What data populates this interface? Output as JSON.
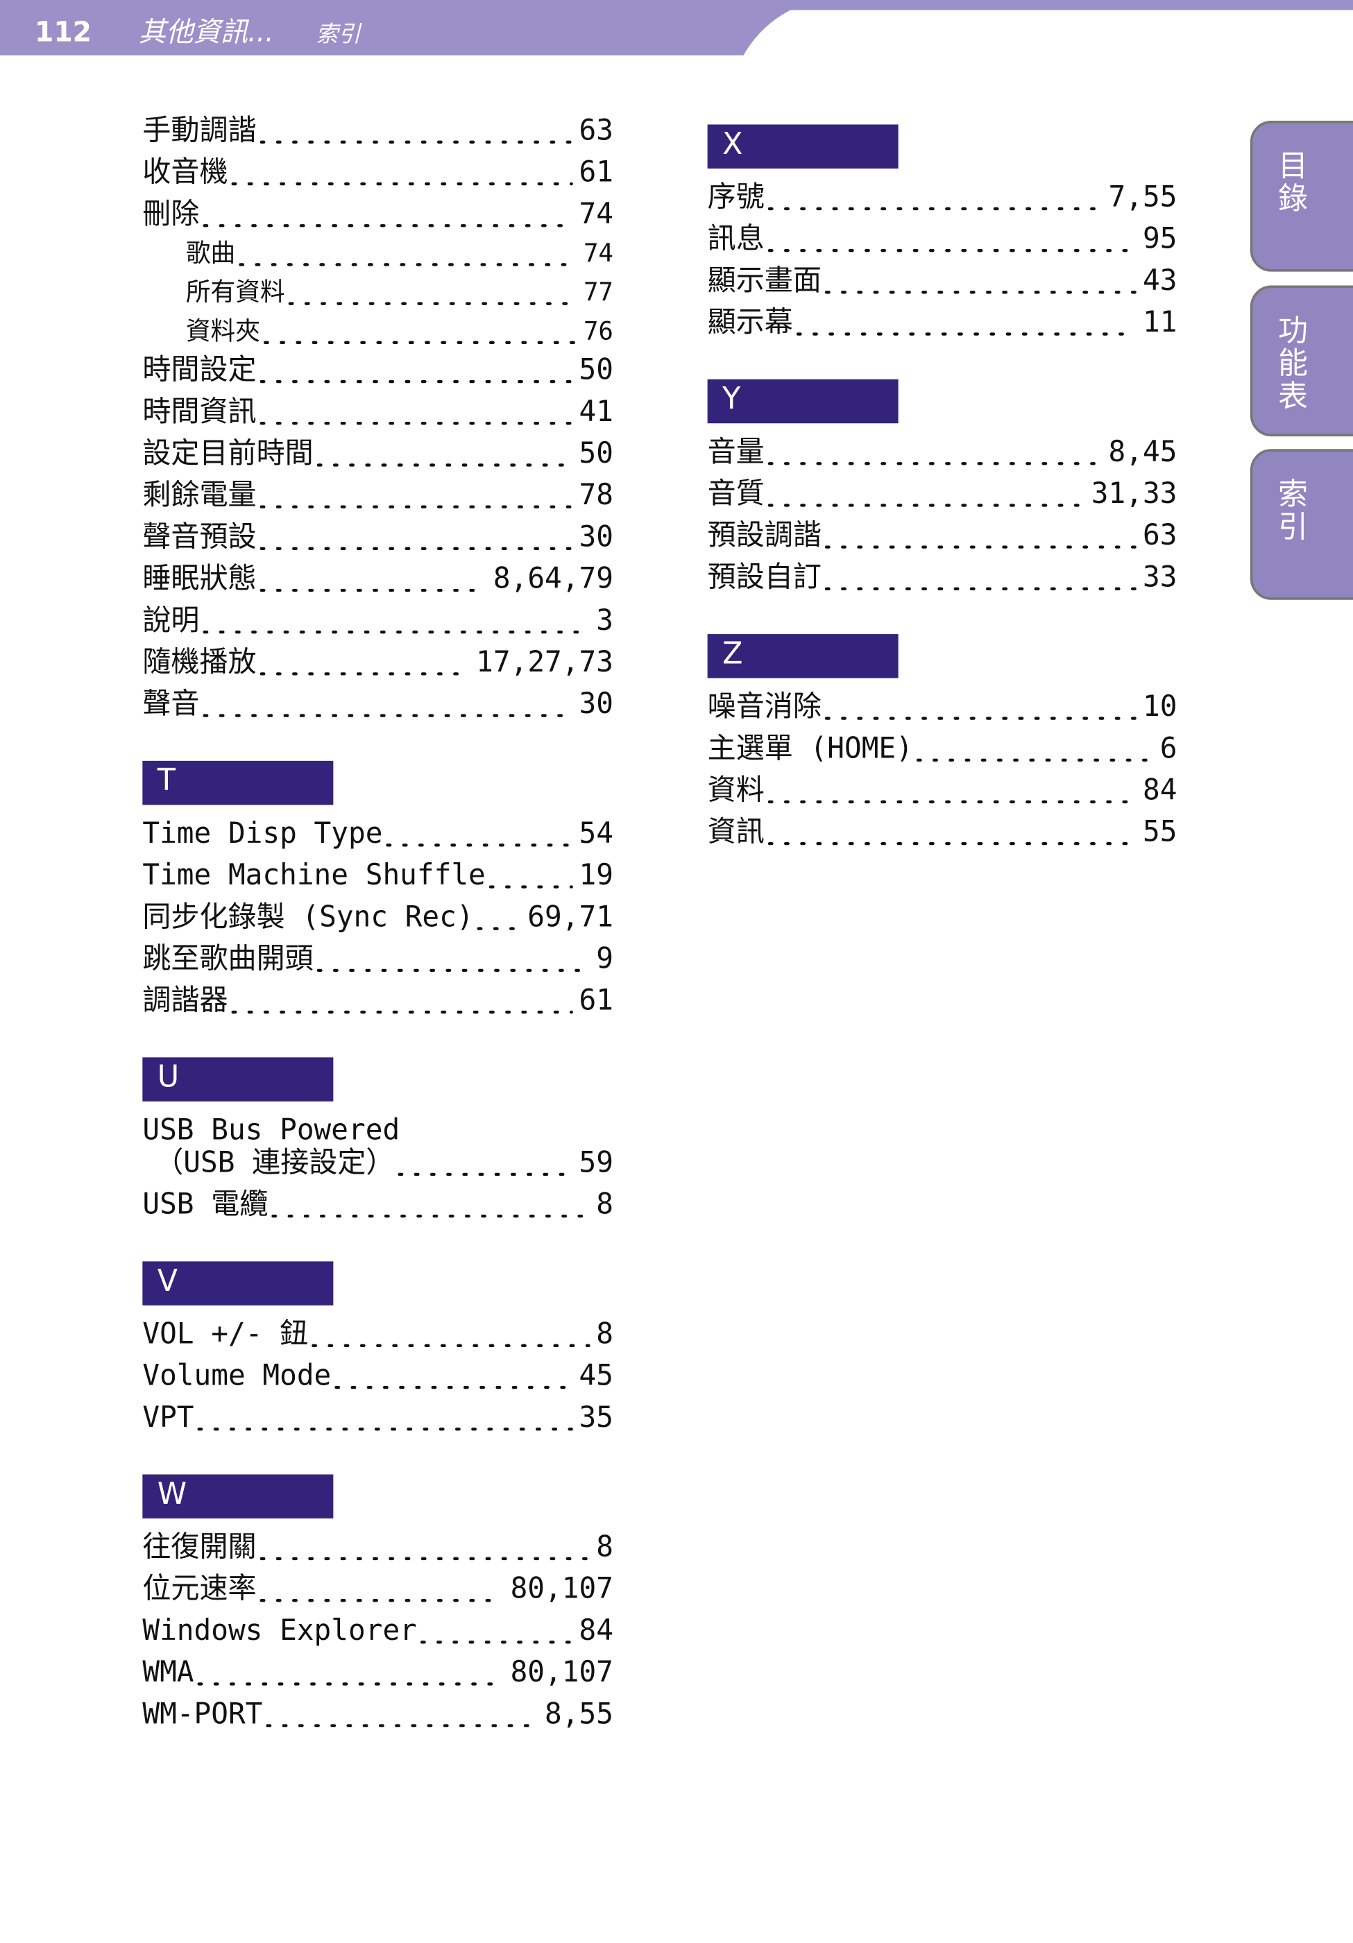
{
  "header": {
    "page_number": "112",
    "title": "其他資訊...",
    "subtitle": "索引"
  },
  "tabs": [
    "目錄",
    "功能表",
    "索引"
  ],
  "columns": [
    {
      "sections": [
        {
          "entries": [
            {
              "term": "手動調諧",
              "page": "63"
            },
            {
              "term": "收音機",
              "page": "61"
            },
            {
              "term": "刪除",
              "page": "74"
            },
            {
              "term": "歌曲",
              "page": "74",
              "level": 2
            },
            {
              "term": "所有資料",
              "page": "77",
              "level": 2
            },
            {
              "term": "資料夾",
              "page": "76",
              "level": 2
            },
            {
              "term": "時間設定",
              "page": "50"
            },
            {
              "term": "時間資訊",
              "page": "41"
            },
            {
              "term": "設定目前時間",
              "page": "50"
            },
            {
              "term": "剩餘電量",
              "page": "78"
            },
            {
              "term": "聲音預設",
              "page": "30"
            },
            {
              "term": "睡眠狀態",
              "page": "8,64,79"
            },
            {
              "term": "說明",
              "page": "3"
            },
            {
              "term": "隨機播放",
              "page": "17,27,73"
            },
            {
              "term": "聲音",
              "page": "30"
            }
          ]
        },
        {
          "letter": "T",
          "entries": [
            {
              "term": "Time Disp Type",
              "page": "54"
            },
            {
              "term": "Time Machine Shuffle",
              "page": "19"
            },
            {
              "term": "同步化錄製 (Sync Rec)",
              "page": "69,71"
            },
            {
              "term": "跳至歌曲開頭",
              "page": "9"
            },
            {
              "term": "調諧器",
              "page": "61"
            }
          ]
        },
        {
          "letter": "U",
          "entries": [
            {
              "term": "USB Bus Powered",
              "term_line2": "（USB 連接設定）",
              "page": "59"
            },
            {
              "term": "USB 電纜",
              "page": "8"
            }
          ]
        },
        {
          "letter": "V",
          "entries": [
            {
              "term": "VOL +/- 鈕",
              "page": "8"
            },
            {
              "term": "Volume Mode",
              "page": "45"
            },
            {
              "term": "VPT",
              "page": "35"
            }
          ]
        },
        {
          "letter": "W",
          "entries": [
            {
              "term": "往復開關",
              "page": "8"
            },
            {
              "term": "位元速率",
              "page": "80,107"
            },
            {
              "term": "Windows Explorer",
              "page": "84"
            },
            {
              "term": "WMA",
              "page": "80,107"
            },
            {
              "term": "WM-PORT",
              "page": "8,55"
            }
          ]
        }
      ]
    },
    {
      "sections": [
        {
          "letter": "X",
          "entries": [
            {
              "term": "序號",
              "page": "7,55"
            },
            {
              "term": "訊息",
              "page": "95"
            },
            {
              "term": "顯示畫面",
              "page": "43"
            },
            {
              "term": "顯示幕",
              "page": "11"
            }
          ]
        },
        {
          "letter": "Y",
          "entries": [
            {
              "term": "音量",
              "page": "8,45"
            },
            {
              "term": "音質",
              "page": "31,33"
            },
            {
              "term": "預設調諧",
              "page": "63"
            },
            {
              "term": "預設自訂",
              "page": "33"
            }
          ]
        },
        {
          "letter": "Z",
          "entries": [
            {
              "term": "噪音消除",
              "page": "10"
            },
            {
              "term": "主選單 (HOME)",
              "page": "6"
            },
            {
              "term": "資料",
              "page": "84"
            },
            {
              "term": "資訊",
              "page": "55"
            }
          ]
        }
      ]
    }
  ]
}
